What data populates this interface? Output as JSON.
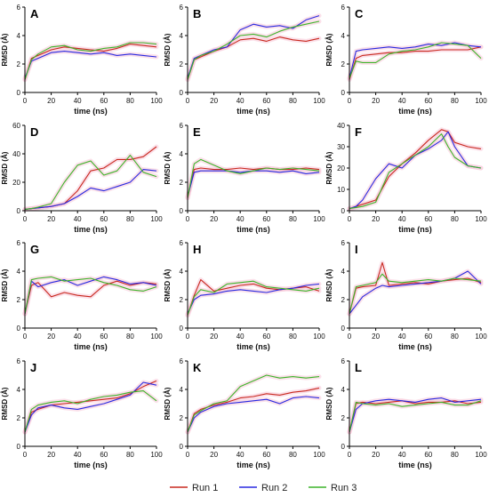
{
  "chart_data": {
    "type": "line",
    "panel_xlabel": "time (ns)",
    "panel_ylabel": "RMSD (Å)",
    "xlim": [
      0,
      100
    ],
    "x_ticks": [
      0,
      20,
      40,
      60,
      80,
      100
    ],
    "legend": {
      "placement": "bottom-center",
      "entries": [
        {
          "name": "Run 1",
          "color": "#c8281e"
        },
        {
          "name": "Run 2",
          "color": "#2828e0"
        },
        {
          "name": "Run 3",
          "color": "#3cb428"
        }
      ]
    },
    "band_color": "#f7c8d8",
    "panels": [
      {
        "label": "A",
        "ylim": [
          0,
          6
        ],
        "y_ticks": [
          0,
          2,
          4,
          6
        ],
        "x": [
          0,
          5,
          10,
          20,
          30,
          40,
          50,
          60,
          70,
          80,
          90,
          100
        ],
        "series": [
          {
            "name": "Run 1",
            "values": [
              0.9,
              2.4,
              2.6,
              3.0,
              3.2,
              3.1,
              3.0,
              2.9,
              3.1,
              3.4,
              3.3,
              3.2
            ]
          },
          {
            "name": "Run 2",
            "values": [
              1.0,
              2.2,
              2.4,
              2.8,
              2.9,
              2.8,
              2.7,
              2.8,
              2.6,
              2.7,
              2.6,
              2.5
            ]
          },
          {
            "name": "Run 3",
            "values": [
              0.9,
              2.3,
              2.7,
              3.2,
              3.3,
              3.0,
              2.9,
              3.1,
              3.2,
              3.5,
              3.5,
              3.4
            ]
          }
        ]
      },
      {
        "label": "B",
        "ylim": [
          0,
          6
        ],
        "y_ticks": [
          0,
          2,
          4,
          6
        ],
        "x": [
          0,
          5,
          10,
          20,
          30,
          40,
          50,
          60,
          70,
          80,
          90,
          100
        ],
        "series": [
          {
            "name": "Run 1",
            "values": [
              0.9,
              2.3,
              2.5,
              2.9,
              3.2,
              3.7,
              3.8,
              3.6,
              3.9,
              3.7,
              3.6,
              3.8
            ]
          },
          {
            "name": "Run 2",
            "values": [
              1.0,
              2.4,
              2.6,
              3.0,
              3.2,
              4.4,
              4.8,
              4.6,
              4.7,
              4.5,
              5.1,
              5.4
            ]
          },
          {
            "name": "Run 3",
            "values": [
              0.9,
              2.3,
              2.6,
              2.9,
              3.4,
              4.0,
              4.1,
              3.9,
              4.3,
              4.6,
              4.8,
              5.0
            ]
          }
        ]
      },
      {
        "label": "C",
        "ylim": [
          0,
          6
        ],
        "y_ticks": [
          0,
          2,
          4,
          6
        ],
        "x": [
          0,
          5,
          10,
          20,
          30,
          40,
          50,
          60,
          70,
          80,
          90,
          100
        ],
        "series": [
          {
            "name": "Run 1",
            "values": [
              0.9,
              2.4,
              2.6,
              2.7,
              2.8,
              2.8,
              2.9,
              2.9,
              3.0,
              3.0,
              3.0,
              3.2
            ]
          },
          {
            "name": "Run 2",
            "values": [
              1.0,
              2.9,
              3.0,
              3.1,
              3.2,
              3.1,
              3.2,
              3.4,
              3.3,
              3.5,
              3.3,
              3.2
            ]
          },
          {
            "name": "Run 3",
            "values": [
              1.0,
              2.2,
              2.1,
              2.1,
              2.7,
              2.9,
              3.0,
              3.2,
              3.5,
              3.4,
              3.3,
              2.4
            ]
          }
        ]
      },
      {
        "label": "D",
        "ylim": [
          0,
          60
        ],
        "y_ticks": [
          0,
          20,
          40,
          60
        ],
        "x": [
          0,
          5,
          10,
          20,
          30,
          40,
          50,
          60,
          70,
          80,
          90,
          100
        ],
        "series": [
          {
            "name": "Run 1",
            "values": [
              1,
              1.5,
              2,
              3,
              5,
              14,
              28,
              30,
              36,
              36,
              38,
              45
            ]
          },
          {
            "name": "Run 2",
            "values": [
              1,
              1.5,
              2,
              3,
              5,
              10,
              16,
              14,
              17,
              20,
              29,
              28
            ]
          },
          {
            "name": "Run 3",
            "values": [
              1,
              1.5,
              2.5,
              5,
              20,
              32,
              35,
              25,
              28,
              39,
              27,
              24
            ]
          }
        ]
      },
      {
        "label": "E",
        "ylim": [
          0,
          6
        ],
        "y_ticks": [
          0,
          2,
          4,
          6
        ],
        "x": [
          0,
          5,
          10,
          20,
          30,
          40,
          50,
          60,
          70,
          80,
          90,
          100
        ],
        "series": [
          {
            "name": "Run 1",
            "values": [
              0.9,
              2.9,
              3.0,
              2.9,
              2.9,
              3.0,
              2.9,
              3.0,
              2.9,
              2.9,
              3.0,
              2.9
            ]
          },
          {
            "name": "Run 2",
            "values": [
              1.0,
              2.7,
              2.8,
              2.8,
              2.8,
              2.7,
              2.8,
              2.8,
              2.7,
              2.8,
              2.6,
              2.7
            ]
          },
          {
            "name": "Run 3",
            "values": [
              0.9,
              3.3,
              3.6,
              3.2,
              2.8,
              2.6,
              2.8,
              3.0,
              2.9,
              3.0,
              2.9,
              2.8
            ]
          }
        ]
      },
      {
        "label": "F",
        "ylim": [
          0,
          40
        ],
        "y_ticks": [
          0,
          10,
          20,
          30,
          40
        ],
        "x": [
          0,
          5,
          10,
          20,
          30,
          40,
          50,
          60,
          70,
          75,
          80,
          90,
          100
        ],
        "series": [
          {
            "name": "Run 1",
            "values": [
              1,
              2,
              3,
              5,
              16,
              22,
              27,
              33,
              38,
              37,
              32,
              30,
              29
            ]
          },
          {
            "name": "Run 2",
            "values": [
              1,
              2,
              5,
              15,
              22,
              20,
              26,
              29,
              33,
              37,
              30,
              21,
              20
            ]
          },
          {
            "name": "Run 3",
            "values": [
              1,
              1.5,
              2,
              4,
              18,
              22,
              26,
              30,
              36,
              30,
              25,
              21,
              20
            ]
          }
        ]
      },
      {
        "label": "G",
        "ylim": [
          0,
          6
        ],
        "y_ticks": [
          0,
          2,
          4,
          6
        ],
        "x": [
          0,
          5,
          10,
          20,
          30,
          40,
          50,
          60,
          70,
          80,
          90,
          100
        ],
        "series": [
          {
            "name": "Run 1",
            "values": [
              1.0,
              3.0,
              3.2,
              2.2,
              2.5,
              2.3,
              2.2,
              3.0,
              3.3,
              3.0,
              3.2,
              3.1
            ]
          },
          {
            "name": "Run 2",
            "values": [
              1.0,
              3.3,
              2.9,
              3.2,
              3.4,
              3.0,
              3.3,
              3.6,
              3.4,
              3.1,
              3.2,
              3.0
            ]
          },
          {
            "name": "Run 3",
            "values": [
              1.0,
              3.4,
              3.5,
              3.6,
              3.3,
              3.4,
              3.5,
              3.2,
              3.0,
              2.7,
              2.6,
              2.9
            ]
          }
        ]
      },
      {
        "label": "H",
        "ylim": [
          0,
          6
        ],
        "y_ticks": [
          0,
          2,
          4,
          6
        ],
        "x": [
          0,
          5,
          10,
          20,
          30,
          40,
          50,
          60,
          70,
          80,
          90,
          100
        ],
        "series": [
          {
            "name": "Run 1",
            "values": [
              0.9,
              2.3,
              3.4,
              2.6,
              2.8,
              3.0,
              3.1,
              2.8,
              2.7,
              2.8,
              2.9,
              2.6
            ]
          },
          {
            "name": "Run 2",
            "values": [
              1.0,
              2.0,
              2.3,
              2.4,
              2.6,
              2.7,
              2.6,
              2.5,
              2.7,
              2.8,
              3.0,
              3.1
            ]
          },
          {
            "name": "Run 3",
            "values": [
              0.9,
              2.2,
              2.7,
              2.5,
              3.1,
              3.2,
              3.3,
              2.9,
              2.8,
              2.7,
              2.6,
              2.8
            ]
          }
        ]
      },
      {
        "label": "I",
        "ylim": [
          0,
          6
        ],
        "y_ticks": [
          0,
          2,
          4,
          6
        ],
        "x": [
          0,
          5,
          10,
          20,
          25,
          30,
          40,
          50,
          60,
          70,
          80,
          90,
          100
        ],
        "series": [
          {
            "name": "Run 1",
            "values": [
              1.0,
              2.8,
              2.9,
              3.0,
              4.6,
              3.0,
              3.1,
              3.2,
              3.1,
              3.3,
              3.4,
              3.5,
              3.2
            ]
          },
          {
            "name": "Run 2",
            "values": [
              1.0,
              1.6,
              2.2,
              2.8,
              3.0,
              2.9,
              3.0,
              3.1,
              3.2,
              3.3,
              3.5,
              4.0,
              3.1
            ]
          },
          {
            "name": "Run 3",
            "values": [
              1.0,
              2.9,
              3.0,
              3.2,
              3.8,
              3.3,
              3.2,
              3.3,
              3.4,
              3.3,
              3.5,
              3.4,
              3.3
            ]
          }
        ]
      },
      {
        "label": "J",
        "ylim": [
          0,
          6
        ],
        "y_ticks": [
          0,
          2,
          4,
          6
        ],
        "x": [
          0,
          5,
          10,
          20,
          30,
          40,
          50,
          60,
          70,
          80,
          90,
          100
        ],
        "series": [
          {
            "name": "Run 1",
            "values": [
              1.0,
              2.4,
              2.6,
              2.9,
              3.0,
              3.1,
              3.2,
              3.3,
              3.4,
              3.7,
              4.2,
              4.6
            ]
          },
          {
            "name": "Run 2",
            "values": [
              1.0,
              2.2,
              2.7,
              2.9,
              2.7,
              2.6,
              2.8,
              3.0,
              3.3,
              3.6,
              4.5,
              4.3
            ]
          },
          {
            "name": "Run 3",
            "values": [
              1.0,
              2.6,
              2.9,
              3.1,
              3.2,
              3.0,
              3.3,
              3.5,
              3.6,
              3.8,
              3.9,
              3.2
            ]
          }
        ]
      },
      {
        "label": "K",
        "ylim": [
          0,
          6
        ],
        "y_ticks": [
          0,
          2,
          4,
          6
        ],
        "x": [
          0,
          5,
          10,
          20,
          30,
          40,
          50,
          60,
          70,
          80,
          90,
          100
        ],
        "series": [
          {
            "name": "Run 1",
            "values": [
              1.0,
              2.3,
              2.6,
              2.9,
              3.1,
              3.4,
              3.5,
              3.7,
              3.6,
              3.8,
              3.9,
              4.1
            ]
          },
          {
            "name": "Run 2",
            "values": [
              1.0,
              2.0,
              2.4,
              2.8,
              3.0,
              3.1,
              3.2,
              3.3,
              3.0,
              3.4,
              3.5,
              3.4
            ]
          },
          {
            "name": "Run 3",
            "values": [
              1.0,
              2.2,
              2.5,
              3.0,
              3.2,
              4.2,
              4.6,
              5.0,
              4.8,
              4.9,
              4.8,
              4.9
            ]
          }
        ]
      },
      {
        "label": "L",
        "ylim": [
          0,
          6
        ],
        "y_ticks": [
          0,
          2,
          4,
          6
        ],
        "x": [
          0,
          5,
          10,
          20,
          30,
          40,
          50,
          60,
          70,
          80,
          90,
          100
        ],
        "series": [
          {
            "name": "Run 1",
            "values": [
              1.0,
              3.0,
              3.1,
              3.0,
              3.1,
              3.2,
              3.0,
              3.1,
              3.1,
              3.2,
              3.0,
              3.1
            ]
          },
          {
            "name": "Run 2",
            "values": [
              1.0,
              2.6,
              3.0,
              3.2,
              3.3,
              3.2,
              3.1,
              3.3,
              3.4,
              3.1,
              3.2,
              3.3
            ]
          },
          {
            "name": "Run 3",
            "values": [
              1.0,
              3.1,
              3.0,
              2.9,
              3.0,
              2.8,
              2.9,
              3.0,
              3.1,
              2.9,
              2.9,
              3.2
            ]
          }
        ]
      }
    ]
  }
}
